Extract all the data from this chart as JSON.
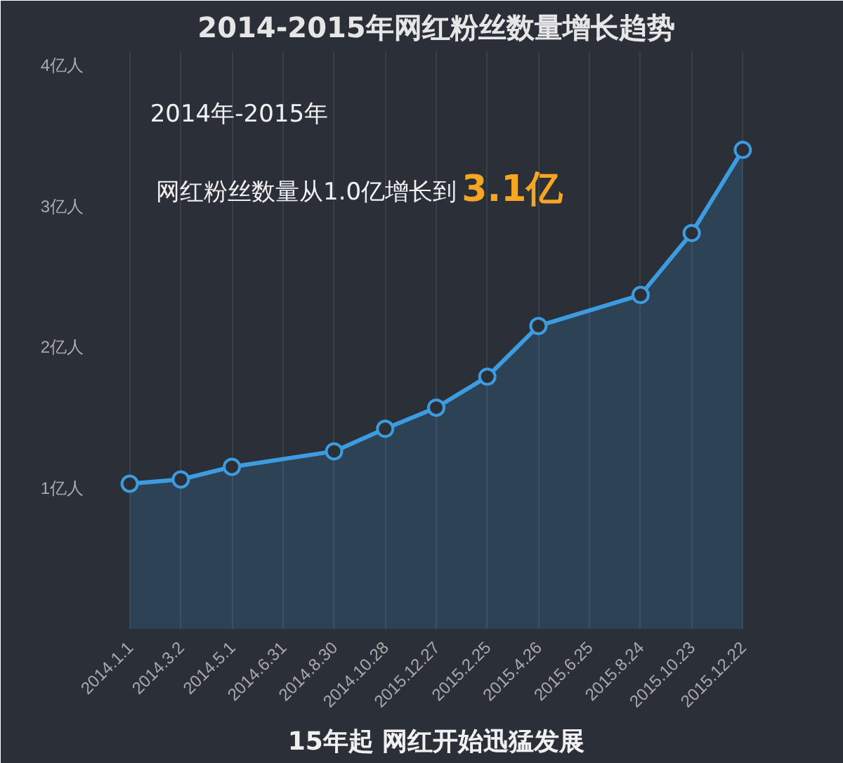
{
  "chart_data": {
    "type": "area",
    "title": "2014-2015年网红粉丝数量增长趋势",
    "categories": [
      "2014.1.1",
      "2014.3.2",
      "2014.5.1",
      "2014.6.31",
      "2014.8.30",
      "2014.10.28",
      "2015.12.27",
      "2015.2.25",
      "2015.4.26",
      "2015.6.25",
      "2015.8.24",
      "2015.10.23",
      "2015.12.22"
    ],
    "series": [
      {
        "color": "#3d9be0",
        "values": [
          1.03,
          1.06,
          1.15,
          null,
          1.26,
          1.42,
          1.57,
          1.79,
          2.15,
          null,
          2.37,
          2.81,
          3.4
        ]
      }
    ],
    "ylim": [
      0,
      4.1
    ],
    "yticks": [
      {
        "value": 1,
        "label": "1亿人"
      },
      {
        "value": 2,
        "label": "2亿人"
      },
      {
        "value": 3,
        "label": "3亿人"
      },
      {
        "value": 4,
        "label": "4亿人"
      }
    ],
    "grid": "x",
    "marker": "circle",
    "annotations": [
      "2014年-2015年",
      "网红粉丝数量从1.0亿增长到",
      "3.1亿",
      "15年起 网红开始迅猛发展"
    ]
  }
}
